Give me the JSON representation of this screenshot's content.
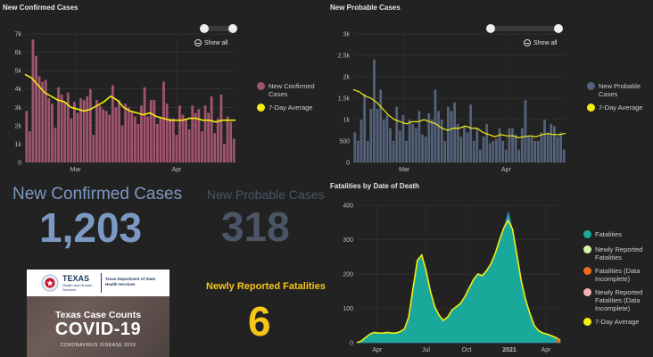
{
  "panels": {
    "confirmed": {
      "title": "New Confirmed Cases",
      "show_all": "Show all",
      "legend": [
        "New Confirmed Cases",
        "7-Day Average"
      ]
    },
    "probable": {
      "title": "New Probable Cases",
      "show_all": "Show all",
      "legend": [
        "New Probable Cases",
        "7-Day Average"
      ]
    },
    "fatalities": {
      "title": "Fatalities by Date of Death",
      "legend": [
        "Fatalities",
        "Newly Reported Fatalities",
        "Fatalities (Data Incomplete)",
        "Newly Reported Fatalities (Data Incomplete)",
        "7-Day Average"
      ]
    }
  },
  "stats": {
    "confirmed_label": "New Confirmed Cases",
    "confirmed_value": "1,203",
    "probable_label": "New Probable Cases",
    "probable_value": "318",
    "fatalities_label": "Newly Reported Fatalities",
    "fatalities_value": "6"
  },
  "banner": {
    "org_line1": "TEXAS",
    "org_line2": "Health and Human Services",
    "org_line3": "Texas Department of State Health Services",
    "headline": "Texas Case Counts",
    "covid_word": "COVID-19",
    "subtitle": "CORONAVIRUS DISEASE 2019"
  },
  "colors": {
    "confirmed_bar": "#a2546e",
    "probable_bar": "#51627c",
    "fatalities_area": "#1aa89a",
    "avg_line": "#f5ee10",
    "newly_reported": "#d6f5a8",
    "incomplete": "#f06a1a",
    "newly_incomplete": "#f5b5b5",
    "confirmed_text": "#7b99c2",
    "probable_text": "#4a5566",
    "fatal_text": "#f5c518"
  },
  "chart_data": [
    {
      "type": "bar",
      "title": "New Confirmed Cases",
      "x_ticks": [
        "Mar",
        "Apr"
      ],
      "ylim": [
        0,
        7000
      ],
      "y_ticks": [
        "0",
        "1k",
        "2k",
        "3k",
        "4k",
        "5k",
        "6k",
        "7k"
      ],
      "series": [
        {
          "name": "New Confirmed Cases",
          "values": [
            2800,
            1700,
            6700,
            5800,
            4700,
            4400,
            4500,
            3500,
            3200,
            1900,
            4100,
            3700,
            3300,
            3800,
            2400,
            3300,
            2700,
            3500,
            3400,
            3600,
            4000,
            1500,
            3400,
            3100,
            2900,
            2800,
            2600,
            4200,
            3000,
            3400,
            2000,
            3200,
            3000,
            2800,
            2500,
            2100,
            3100,
            4100,
            2500,
            3400,
            3400,
            2100,
            2500,
            4400,
            3200,
            2400,
            2400,
            1500,
            3100,
            2600,
            2300,
            1800,
            3100,
            2700,
            2900,
            1700,
            3100,
            2700,
            3600,
            1600,
            2400,
            3700,
            1000,
            2500,
            2200,
            1300
          ]
        },
        {
          "name": "7-Day Average",
          "values": [
            4800,
            4600,
            4200,
            3800,
            3600,
            3400,
            3300,
            3000,
            2900,
            2800,
            2900,
            3100,
            3300,
            3600,
            3400,
            3000,
            2800,
            2700,
            2600,
            2700,
            2500,
            2400,
            2300,
            2300,
            2300,
            2400,
            2400,
            2300,
            2300,
            2200,
            2300,
            2300,
            2300
          ]
        }
      ]
    },
    {
      "type": "bar",
      "title": "New Probable Cases",
      "x_ticks": [
        "Mar",
        "Apr"
      ],
      "ylim": [
        0,
        3000
      ],
      "y_ticks": [
        "0",
        "500",
        "1k",
        "1.5k",
        "2k",
        "2.5k",
        "3k"
      ],
      "series": [
        {
          "name": "New Probable Cases",
          "values": [
            700,
            500,
            1000,
            1600,
            500,
            1250,
            2400,
            1250,
            1700,
            1000,
            1100,
            800,
            500,
            1300,
            750,
            1100,
            500,
            1000,
            900,
            800,
            1200,
            650,
            600,
            1150,
            1000,
            1700,
            1200,
            1000,
            500,
            1300,
            1200,
            1400,
            900,
            600,
            850,
            700,
            1350,
            500,
            800,
            300,
            600,
            900,
            450,
            500,
            550,
            800,
            500,
            300,
            800,
            800,
            650,
            300,
            800,
            1450,
            600,
            600,
            500,
            500,
            700,
            1000,
            700,
            900,
            850,
            600,
            700,
            300
          ]
        },
        {
          "name": "7-Day Average",
          "values": [
            1700,
            1650,
            1550,
            1500,
            1400,
            1250,
            1100,
            1000,
            950,
            900,
            950,
            950,
            1000,
            950,
            900,
            800,
            750,
            800,
            800,
            850,
            800,
            800,
            700,
            650,
            600,
            650,
            620,
            620,
            580,
            600,
            620,
            600,
            650,
            670,
            650,
            650,
            680
          ]
        }
      ]
    },
    {
      "type": "area",
      "title": "Fatalities by Date of Death",
      "x_ticks": [
        "Apr",
        "Jul",
        "Oct",
        "2021",
        "Apr"
      ],
      "ylim": [
        0,
        400
      ],
      "y_ticks": [
        "0",
        "100",
        "200",
        "300",
        "400"
      ],
      "series": [
        {
          "name": "Fatalities",
          "values": [
            0,
            5,
            15,
            25,
            30,
            28,
            28,
            30,
            28,
            28,
            32,
            40,
            75,
            160,
            240,
            255,
            210,
            150,
            105,
            80,
            65,
            75,
            95,
            105,
            115,
            135,
            160,
            185,
            200,
            195,
            210,
            230,
            260,
            300,
            335,
            380,
            330,
            255,
            180,
            125,
            85,
            50,
            35,
            28,
            25,
            20,
            15,
            8
          ]
        },
        {
          "name": "7-Day Average",
          "values": [
            0,
            5,
            15,
            25,
            30,
            28,
            28,
            30,
            28,
            28,
            32,
            40,
            75,
            160,
            240,
            255,
            210,
            150,
            105,
            80,
            65,
            75,
            95,
            105,
            115,
            135,
            160,
            185,
            200,
            195,
            210,
            230,
            260,
            300,
            335,
            355,
            330,
            255,
            180,
            125,
            85,
            50,
            35,
            28,
            25,
            20,
            15,
            8
          ]
        }
      ]
    }
  ]
}
